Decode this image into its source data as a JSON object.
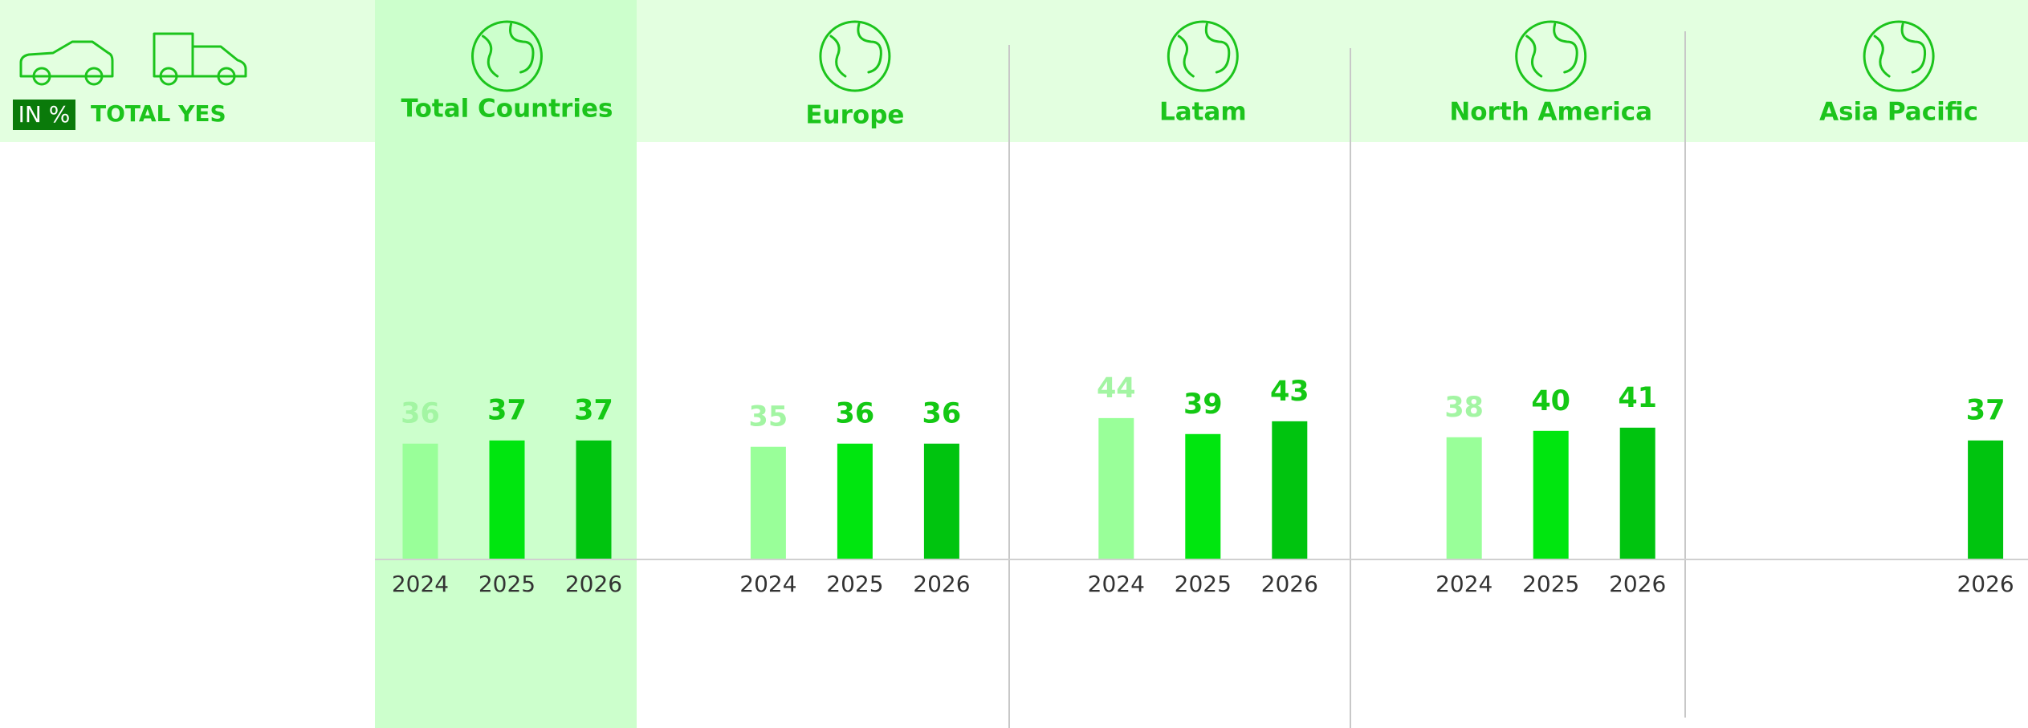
{
  "chart_data": {
    "type": "bar",
    "unit_label": "IN %",
    "title": "TOTAL YES",
    "categories": [
      "Total Countries",
      "Europe",
      "Latam",
      "North America",
      "Asia Pacific"
    ],
    "series": [
      {
        "name": "2024",
        "color": "#99ff99",
        "label_color": "#a3f5a3",
        "values": [
          36,
          35,
          44,
          38,
          null
        ]
      },
      {
        "name": "2025",
        "color": "#00e60f",
        "label_color": "#14c814",
        "values": [
          37,
          36,
          39,
          40,
          null
        ]
      },
      {
        "name": "2026",
        "color": "#00c40f",
        "label_color": "#14c814",
        "values": [
          37,
          36,
          43,
          41,
          37
        ]
      }
    ]
  }
}
